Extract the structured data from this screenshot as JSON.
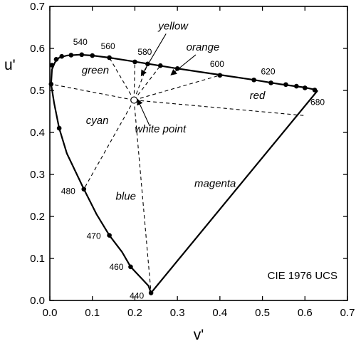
{
  "chart_data": {
    "type": "scatter",
    "title": "",
    "xlabel": "v'",
    "ylabel": "u'",
    "xlim": [
      0.0,
      0.7
    ],
    "ylim": [
      0.0,
      0.7
    ],
    "xticks": [
      "0.0",
      "0.1",
      "0.2",
      "0.3",
      "0.4",
      "0.5",
      "0.6",
      "0.7"
    ],
    "yticks": [
      "0.0",
      "0.1",
      "0.2",
      "0.3",
      "0.4",
      "0.5",
      "0.6",
      "0.7"
    ],
    "grid": false,
    "annotation": "CIE 1976 UCS",
    "spectral_locus": [
      [
        0.238,
        0.018
      ],
      [
        0.232,
        0.035
      ],
      [
        0.19,
        0.08
      ],
      [
        0.17,
        0.115
      ],
      [
        0.14,
        0.155
      ],
      [
        0.11,
        0.205
      ],
      [
        0.08,
        0.265
      ],
      [
        0.04,
        0.35
      ],
      [
        0.022,
        0.41
      ],
      [
        0.01,
        0.47
      ],
      [
        0.003,
        0.515
      ],
      [
        0.005,
        0.55
      ],
      [
        0.012,
        0.567
      ],
      [
        0.022,
        0.578
      ],
      [
        0.04,
        0.583
      ],
      [
        0.07,
        0.585
      ],
      [
        0.1,
        0.583
      ],
      [
        0.14,
        0.578
      ],
      [
        0.19,
        0.57
      ],
      [
        0.24,
        0.562
      ],
      [
        0.3,
        0.552
      ],
      [
        0.36,
        0.543
      ],
      [
        0.42,
        0.534
      ],
      [
        0.48,
        0.525
      ],
      [
        0.54,
        0.515
      ],
      [
        0.6,
        0.507
      ],
      [
        0.623,
        0.502
      ]
    ],
    "purple_line": [
      [
        0.238,
        0.018
      ],
      [
        0.63,
        0.5
      ]
    ],
    "points": [
      [
        0.238,
        0.018
      ],
      [
        0.19,
        0.08
      ],
      [
        0.14,
        0.155
      ],
      [
        0.08,
        0.265
      ],
      [
        0.022,
        0.41
      ],
      [
        0.003,
        0.515
      ],
      [
        0.005,
        0.56
      ],
      [
        0.015,
        0.574
      ],
      [
        0.028,
        0.581
      ],
      [
        0.05,
        0.584
      ],
      [
        0.075,
        0.585
      ],
      [
        0.1,
        0.583
      ],
      [
        0.14,
        0.578
      ],
      [
        0.2,
        0.568
      ],
      [
        0.23,
        0.563
      ],
      [
        0.26,
        0.559
      ],
      [
        0.3,
        0.552
      ],
      [
        0.4,
        0.536
      ],
      [
        0.48,
        0.525
      ],
      [
        0.52,
        0.518
      ],
      [
        0.555,
        0.514
      ],
      [
        0.58,
        0.51
      ],
      [
        0.6,
        0.506
      ],
      [
        0.623,
        0.501
      ]
    ],
    "wavelength_labels": [
      {
        "text": "440",
        "x": 0.238,
        "y": 0.018
      },
      {
        "text": "460",
        "x": 0.19,
        "y": 0.08
      },
      {
        "text": "470",
        "x": 0.14,
        "y": 0.155
      },
      {
        "text": "480",
        "x": 0.08,
        "y": 0.265
      },
      {
        "text": "540",
        "x": 0.075,
        "y": 0.585
      },
      {
        "text": "560",
        "x": 0.14,
        "y": 0.578
      },
      {
        "text": "580",
        "x": 0.23,
        "y": 0.563
      },
      {
        "text": "600",
        "x": 0.4,
        "y": 0.536
      },
      {
        "text": "620",
        "x": 0.52,
        "y": 0.518
      },
      {
        "text": "680",
        "x": 0.623,
        "y": 0.501
      }
    ],
    "white_point": {
      "label": "white point",
      "x": 0.198,
      "y": 0.477
    },
    "dashed_lines": [
      [
        [
          0.198,
          0.477
        ],
        [
          0.003,
          0.515
        ]
      ],
      [
        [
          0.198,
          0.477
        ],
        [
          0.08,
          0.265
        ]
      ],
      [
        [
          0.198,
          0.477
        ],
        [
          0.238,
          0.018
        ]
      ],
      [
        [
          0.198,
          0.477
        ],
        [
          0.14,
          0.578
        ]
      ],
      [
        [
          0.198,
          0.477
        ],
        [
          0.2,
          0.568
        ]
      ],
      [
        [
          0.198,
          0.477
        ],
        [
          0.23,
          0.563
        ]
      ],
      [
        [
          0.198,
          0.477
        ],
        [
          0.26,
          0.559
        ]
      ],
      [
        [
          0.198,
          0.477
        ],
        [
          0.4,
          0.536
        ]
      ],
      [
        [
          0.198,
          0.477
        ],
        [
          0.6,
          0.44
        ]
      ]
    ],
    "regions": [
      {
        "text": "green",
        "x": 0.075,
        "y": 0.54
      },
      {
        "text": "cyan",
        "x": 0.085,
        "y": 0.42
      },
      {
        "text": "blue",
        "x": 0.155,
        "y": 0.24
      },
      {
        "text": "magenta",
        "x": 0.34,
        "y": 0.27
      },
      {
        "text": "red",
        "x": 0.47,
        "y": 0.48
      }
    ],
    "callouts": [
      {
        "text": "yellow",
        "x": 0.29,
        "y": 0.645,
        "tx": 0.215,
        "ty": 0.535
      },
      {
        "text": "orange",
        "x": 0.36,
        "y": 0.595,
        "tx": 0.285,
        "ty": 0.537
      }
    ]
  }
}
